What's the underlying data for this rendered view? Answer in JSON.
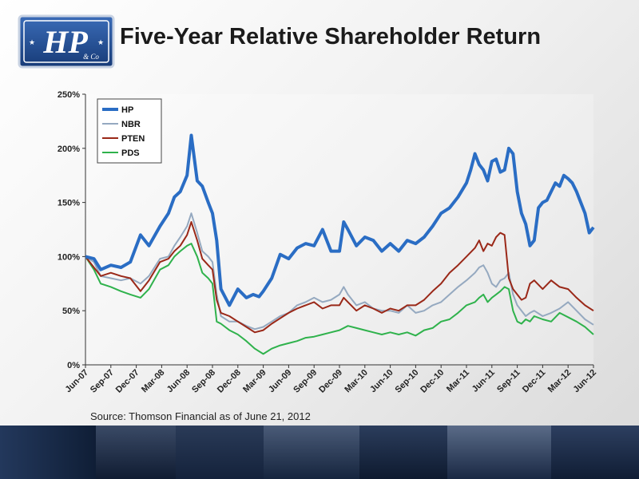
{
  "slide": {
    "title": "Five-Year Relative Shareholder Return",
    "source": "Source: Thomson Financial as of June 21, 2012",
    "logo_text": "HP",
    "logo_subtext": "& Co"
  },
  "colors": {
    "HP": "#2a6dc4",
    "NBR": "#95a9c0",
    "PTEN": "#9a2818",
    "PDS": "#2fb24c",
    "footer": "#13233c",
    "logo_blue": "#1f4e9a"
  },
  "chart_data": {
    "type": "line",
    "title": "",
    "xlabel": "",
    "ylabel": "",
    "ylim": [
      0,
      250
    ],
    "y_ticks": [
      0,
      50,
      100,
      150,
      200,
      250
    ],
    "y_tick_labels": [
      "0%",
      "50%",
      "100%",
      "150%",
      "200%",
      "250%"
    ],
    "x_ticks": [
      "Jun-07",
      "Sep-07",
      "Dec-07",
      "Mar-08",
      "Jun-08",
      "Sep-08",
      "Dec-08",
      "Mar-09",
      "Jun-09",
      "Sep-09",
      "Dec-09",
      "Mar-10",
      "Jun-10",
      "Sep-10",
      "Dec-10",
      "Mar-11",
      "Jun-11",
      "Sep-11",
      "Dec-11",
      "Mar-12",
      "Jun-12"
    ],
    "x_tick_pos": [
      0,
      3,
      6,
      9,
      12,
      15,
      18,
      21,
      24,
      27,
      30,
      33,
      36,
      39,
      42,
      45,
      48,
      51,
      54,
      57,
      60
    ],
    "x_range": [
      0,
      60
    ],
    "grid": false,
    "legend": "top-left",
    "series": [
      {
        "name": "HP",
        "x": [
          0,
          1,
          1.8,
          3,
          4.2,
          5.3,
          6.5,
          7.5,
          8.8,
          9.8,
          10.5,
          11.2,
          12,
          12.5,
          13.2,
          13.8,
          14.5,
          15,
          15.5,
          16,
          17,
          18,
          19,
          19.8,
          20.5,
          21,
          22,
          23,
          24,
          25,
          26,
          27,
          28,
          29,
          30,
          30.5,
          31,
          32,
          33,
          34,
          35,
          36,
          37,
          38,
          39,
          40,
          41,
          42,
          43,
          44,
          45,
          45.5,
          46,
          46.5,
          47,
          47.5,
          48,
          48.5,
          49,
          49.5,
          50,
          50.5,
          51,
          51.5,
          52,
          52.5,
          53,
          53.5,
          54,
          54.5,
          55,
          55.5,
          56,
          56.5,
          57,
          57.5,
          58,
          58.5,
          59,
          59.5,
          60
        ],
        "values": [
          100,
          98,
          88,
          92,
          90,
          95,
          120,
          110,
          128,
          140,
          155,
          160,
          175,
          212,
          170,
          165,
          150,
          140,
          115,
          70,
          55,
          70,
          62,
          65,
          63,
          68,
          80,
          102,
          98,
          108,
          112,
          110,
          125,
          105,
          105,
          132,
          125,
          110,
          118,
          115,
          105,
          112,
          105,
          115,
          112,
          118,
          128,
          140,
          145,
          155,
          168,
          180,
          195,
          185,
          180,
          170,
          188,
          190,
          178,
          180,
          200,
          195,
          160,
          140,
          130,
          110,
          115,
          145,
          150,
          152,
          160,
          168,
          165,
          175,
          172,
          168,
          160,
          150,
          140,
          122,
          127
        ]
      },
      {
        "name": "NBR",
        "x": [
          0,
          1,
          1.8,
          3,
          4.2,
          5.3,
          6.5,
          7.5,
          8.8,
          9.8,
          10.5,
          11.2,
          12,
          12.5,
          13.2,
          13.8,
          14.5,
          15,
          15.5,
          16,
          17,
          18,
          19,
          20,
          21,
          22,
          23,
          24,
          25,
          26,
          27,
          28,
          29,
          30,
          30.5,
          31,
          32,
          33,
          34,
          35,
          36,
          37,
          38,
          39,
          40,
          41,
          42,
          43,
          44,
          45,
          46,
          46.5,
          47,
          47.5,
          48,
          48.5,
          49,
          49.5,
          50,
          50.5,
          51,
          51.5,
          52,
          52.5,
          53,
          54,
          55,
          56,
          57,
          58,
          59,
          60
        ],
        "values": [
          100,
          95,
          82,
          80,
          78,
          80,
          75,
          82,
          98,
          100,
          110,
          118,
          128,
          140,
          122,
          105,
          100,
          95,
          65,
          45,
          40,
          40,
          36,
          33,
          35,
          40,
          45,
          48,
          55,
          58,
          62,
          58,
          60,
          65,
          72,
          65,
          55,
          58,
          52,
          50,
          50,
          48,
          55,
          48,
          50,
          55,
          58,
          65,
          72,
          78,
          85,
          90,
          92,
          85,
          75,
          72,
          78,
          80,
          85,
          65,
          55,
          50,
          45,
          48,
          50,
          45,
          48,
          52,
          58,
          50,
          42,
          37
        ]
      },
      {
        "name": "PTEN",
        "x": [
          0,
          1,
          1.8,
          3,
          4.2,
          5.3,
          6.5,
          7.5,
          8.8,
          9.8,
          10.5,
          11.2,
          12,
          12.5,
          13.2,
          13.8,
          14.5,
          15,
          15.5,
          16,
          17,
          18,
          19,
          20,
          21,
          22,
          23,
          24,
          25,
          26,
          27,
          28,
          29,
          30,
          30.5,
          31,
          32,
          33,
          34,
          35,
          36,
          37,
          38,
          39,
          40,
          41,
          42,
          43,
          44,
          45,
          46,
          46.5,
          47,
          47.5,
          48,
          48.5,
          49,
          49.5,
          50,
          50.5,
          51,
          51.5,
          52,
          52.5,
          53,
          54,
          55,
          56,
          57,
          58,
          59,
          60
        ],
        "values": [
          100,
          90,
          82,
          85,
          82,
          80,
          68,
          78,
          95,
          98,
          105,
          110,
          120,
          132,
          115,
          98,
          92,
          88,
          60,
          48,
          45,
          40,
          35,
          30,
          32,
          38,
          43,
          48,
          52,
          55,
          58,
          52,
          55,
          55,
          62,
          58,
          50,
          55,
          52,
          48,
          52,
          50,
          55,
          55,
          60,
          68,
          75,
          85,
          92,
          100,
          108,
          115,
          105,
          112,
          110,
          118,
          122,
          120,
          80,
          70,
          65,
          60,
          62,
          75,
          78,
          70,
          78,
          72,
          70,
          62,
          55,
          50
        ]
      },
      {
        "name": "PDS",
        "x": [
          0,
          1,
          1.8,
          3,
          4.2,
          5.3,
          6.5,
          7.5,
          8.8,
          9.8,
          10.5,
          11.2,
          12,
          12.5,
          13.2,
          13.8,
          14.5,
          15,
          15.5,
          16,
          17,
          18,
          19,
          20,
          21,
          22,
          23,
          24,
          25,
          26,
          27,
          28,
          29,
          30,
          31,
          32,
          33,
          34,
          35,
          36,
          37,
          38,
          39,
          40,
          41,
          42,
          43,
          44,
          45,
          46,
          46.5,
          47,
          47.5,
          48,
          48.5,
          49,
          49.5,
          50,
          50.5,
          51,
          51.5,
          52,
          52.5,
          53,
          54,
          55,
          56,
          57,
          58,
          59,
          60
        ],
        "values": [
          100,
          88,
          75,
          72,
          68,
          65,
          62,
          70,
          88,
          92,
          100,
          105,
          110,
          112,
          100,
          85,
          80,
          75,
          40,
          38,
          32,
          28,
          22,
          15,
          10,
          15,
          18,
          20,
          22,
          25,
          26,
          28,
          30,
          32,
          36,
          34,
          32,
          30,
          28,
          30,
          28,
          30,
          27,
          32,
          34,
          40,
          42,
          48,
          55,
          58,
          62,
          65,
          58,
          62,
          65,
          68,
          72,
          70,
          50,
          40,
          38,
          42,
          40,
          45,
          42,
          40,
          48,
          44,
          40,
          35,
          28
        ]
      }
    ]
  }
}
